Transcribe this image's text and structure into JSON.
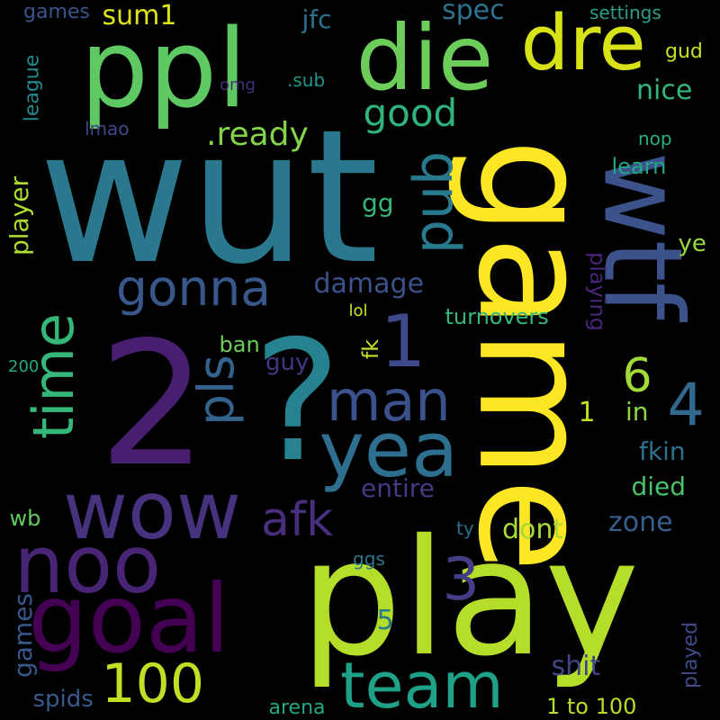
{
  "background": "#000000",
  "words": [
    {
      "name": "word-wut",
      "text": "wut",
      "color": "#2a788e"
    },
    {
      "name": "word-play",
      "text": "play",
      "color": "#b5de2b"
    },
    {
      "name": "word-game",
      "text": "game",
      "color": "#fde725"
    },
    {
      "name": "word-2",
      "text": "2",
      "color": "#481f70"
    },
    {
      "name": "word-question",
      "text": "?",
      "color": "#26828e"
    },
    {
      "name": "word-ppl",
      "text": "ppl",
      "color": "#5ec962"
    },
    {
      "name": "word-wtf",
      "text": "wtf",
      "color": "#3b528b"
    },
    {
      "name": "word-die",
      "text": "die",
      "color": "#6ccd5a"
    },
    {
      "name": "word-dre",
      "text": "dre",
      "color": "#d8e219"
    },
    {
      "name": "word-goal",
      "text": "goal",
      "color": "#440154"
    },
    {
      "name": "word-noo",
      "text": "noo",
      "color": "#482475"
    },
    {
      "name": "word-wow",
      "text": "wow",
      "color": "#46327e"
    },
    {
      "name": "word-yea",
      "text": "yea",
      "color": "#2e6e8e"
    },
    {
      "name": "word-team",
      "text": "team",
      "color": "#1fa187"
    },
    {
      "name": "word-time",
      "text": "time",
      "color": "#35b779"
    },
    {
      "name": "word-100",
      "text": "100",
      "color": "#c0df25"
    },
    {
      "name": "word-1",
      "text": "1",
      "color": "#3e4989"
    },
    {
      "name": "word-4",
      "text": "4",
      "color": "#31688e"
    },
    {
      "name": "word-pub",
      "text": "pub",
      "color": "#29798e"
    },
    {
      "name": "word-man",
      "text": "man",
      "color": "#3b518b"
    },
    {
      "name": "word-gonna",
      "text": "gonna",
      "color": "#38588c"
    },
    {
      "name": "word-pls",
      "text": "pls",
      "color": "#33638d"
    },
    {
      "name": "word-afk",
      "text": "afk",
      "color": "#472f7d"
    },
    {
      "name": "word-3",
      "text": "3",
      "color": "#433e85"
    },
    {
      "name": "word-6",
      "text": "6",
      "color": "#a2da37"
    },
    {
      "name": "word-good",
      "text": "good",
      "color": "#2fb47c"
    },
    {
      "name": "word-ready",
      "text": ".ready",
      "color": "#84d44b"
    },
    {
      "name": "word-sum1",
      "text": "sum1",
      "color": "#dce319"
    },
    {
      "name": "word-games",
      "text": "games",
      "color": "#3a548c"
    },
    {
      "name": "word-jfc",
      "text": "jfc",
      "color": "#2d708e"
    },
    {
      "name": "word-spec",
      "text": "spec",
      "color": "#2c738e"
    },
    {
      "name": "word-settings",
      "text": "settings",
      "color": "#2a9e89"
    },
    {
      "name": "word-gud",
      "text": "gud",
      "color": "#c8e020"
    },
    {
      "name": "word-nice",
      "text": "nice",
      "color": "#34b679"
    },
    {
      "name": "word-nop",
      "text": "nop",
      "color": "#29af7f"
    },
    {
      "name": "word-learn",
      "text": "learn",
      "color": "#22a884"
    },
    {
      "name": "word-league",
      "text": "league",
      "color": "#23888e"
    },
    {
      "name": "word-player",
      "text": "player",
      "color": "#addc30"
    },
    {
      "name": "word-omg",
      "text": "omg",
      "color": "#46317e"
    },
    {
      "name": "word-sub",
      "text": ".sub",
      "color": "#1f978b"
    },
    {
      "name": "word-lmao",
      "text": "lmao",
      "color": "#3f4788"
    },
    {
      "name": "word-gg",
      "text": "gg",
      "color": "#35b779"
    },
    {
      "name": "word-damage",
      "text": "damage",
      "color": "#3b528b"
    },
    {
      "name": "word-playing",
      "text": "playing",
      "color": "#482576"
    },
    {
      "name": "word-ye",
      "text": "ye",
      "color": "#98d83e"
    },
    {
      "name": "word-turnovers",
      "text": "turnovers",
      "color": "#37b878"
    },
    {
      "name": "word-lol",
      "text": "lol",
      "color": "#cde11d"
    },
    {
      "name": "word-fk",
      "text": "fk",
      "color": "#c2df23"
    },
    {
      "name": "word-ban",
      "text": "ban",
      "color": "#6ece58"
    },
    {
      "name": "word-guy",
      "text": "guy",
      "color": "#453581"
    },
    {
      "name": "word-200",
      "text": "200",
      "color": "#24aa83"
    },
    {
      "name": "word-in",
      "text": "in",
      "color": "#8fd744"
    },
    {
      "name": "word-1b",
      "text": "1",
      "color": "#c2df23"
    },
    {
      "name": "word-fkin",
      "text": "fkin",
      "color": "#2d708e"
    },
    {
      "name": "word-died",
      "text": "died",
      "color": "#4ac16d"
    },
    {
      "name": "word-entire",
      "text": "entire",
      "color": "#443983"
    },
    {
      "name": "word-wb",
      "text": "wb",
      "color": "#63cb5f"
    },
    {
      "name": "word-zone",
      "text": "zone",
      "color": "#355f8d"
    },
    {
      "name": "word-dont",
      "text": "dont",
      "color": "#a8db34"
    },
    {
      "name": "word-ty",
      "text": "ty",
      "color": "#2e6d8e"
    },
    {
      "name": "word-ggs",
      "text": "ggs",
      "color": "#2a778e"
    },
    {
      "name": "word-5",
      "text": "5",
      "color": "#2a788e"
    },
    {
      "name": "word-shit",
      "text": "shit",
      "color": "#414487"
    },
    {
      "name": "word-played",
      "text": "played",
      "color": "#3e4989"
    },
    {
      "name": "word-games2",
      "text": "games",
      "color": "#38588c"
    },
    {
      "name": "word-spids",
      "text": "spids",
      "color": "#38598c"
    },
    {
      "name": "word-arena",
      "text": "arena",
      "color": "#22a884"
    },
    {
      "name": "word-1to100",
      "text": "1 to 100",
      "color": "#b8de29"
    }
  ]
}
